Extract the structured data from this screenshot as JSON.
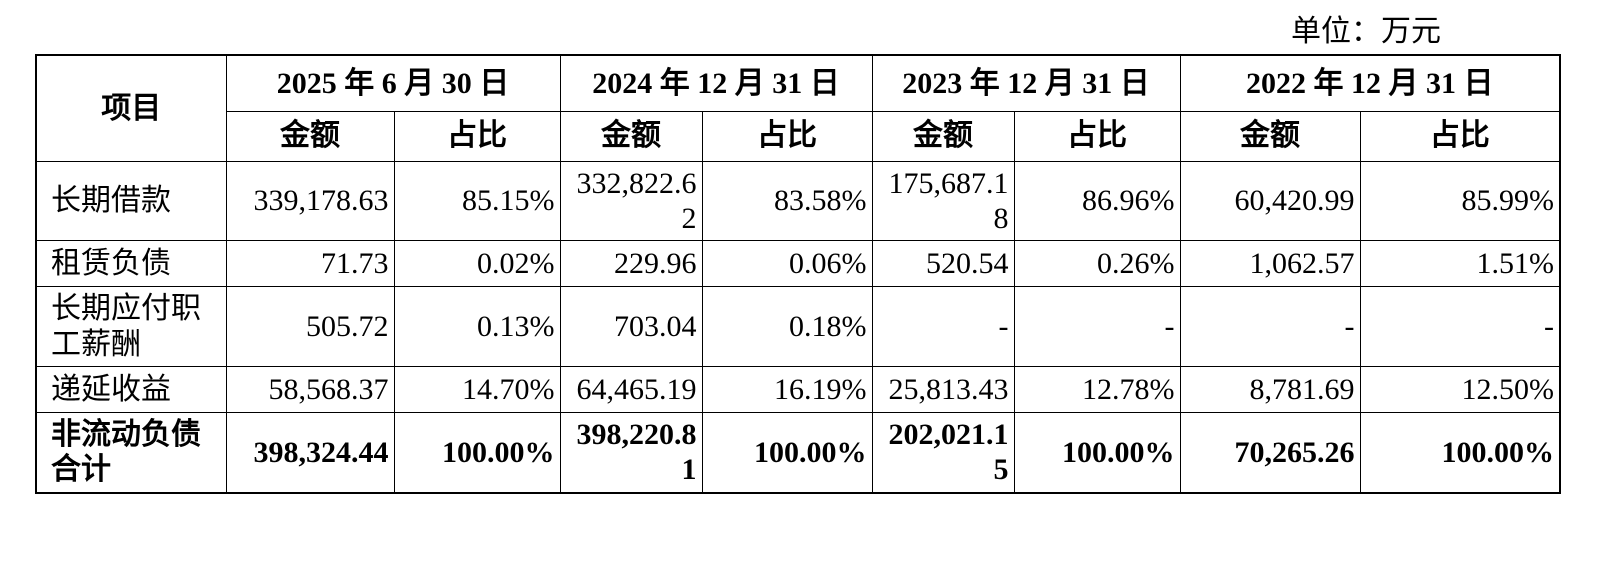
{
  "unit_label": "单位：万元",
  "table": {
    "item_header": "项目",
    "periods": [
      {
        "date": "2025 年 6 月 30 日",
        "amount_header": "金额",
        "ratio_header": "占比"
      },
      {
        "date": "2024 年 12 月 31 日",
        "amount_header": "金额",
        "ratio_header": "占比"
      },
      {
        "date": "2023 年 12 月 31 日",
        "amount_header": "金额",
        "ratio_header": "占比"
      },
      {
        "date": "2022 年 12 月 31 日",
        "amount_header": "金额",
        "ratio_header": "占比"
      }
    ],
    "rows": [
      {
        "item": "长期借款",
        "bold": false,
        "values": [
          "339,178.63",
          "85.15%",
          "332,822.62",
          "83.58%",
          "175,687.18",
          "86.96%",
          "60,420.99",
          "85.99%"
        ]
      },
      {
        "item": "租赁负债",
        "bold": false,
        "values": [
          "71.73",
          "0.02%",
          "229.96",
          "0.06%",
          "520.54",
          "0.26%",
          "1,062.57",
          "1.51%"
        ]
      },
      {
        "item": "长期应付职工薪酬",
        "bold": false,
        "values": [
          "505.72",
          "0.13%",
          "703.04",
          "0.18%",
          "-",
          "-",
          "-",
          "-"
        ]
      },
      {
        "item": "递延收益",
        "bold": false,
        "values": [
          "58,568.37",
          "14.70%",
          "64,465.19",
          "16.19%",
          "25,813.43",
          "12.78%",
          "8,781.69",
          "12.50%"
        ]
      },
      {
        "item": "非流动负债合计",
        "bold": true,
        "values": [
          "398,324.44",
          "100.00%",
          "398,220.81",
          "100.00%",
          "202,021.15",
          "100.00%",
          "70,265.26",
          "100.00%"
        ]
      }
    ]
  }
}
